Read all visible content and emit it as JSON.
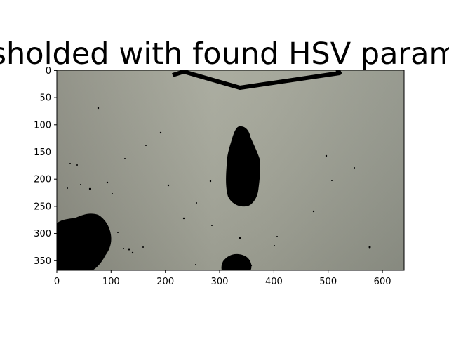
{
  "figure": {
    "title": "sholded with found HSV param",
    "image_description": "thresholded camera frame of a grey floor with black blobs",
    "image_size": [
      640,
      370
    ]
  },
  "axes": {
    "x_ticks": [
      0,
      100,
      200,
      300,
      400,
      500,
      600
    ],
    "y_ticks": [
      0,
      50,
      100,
      150,
      200,
      250,
      300,
      350
    ]
  }
}
